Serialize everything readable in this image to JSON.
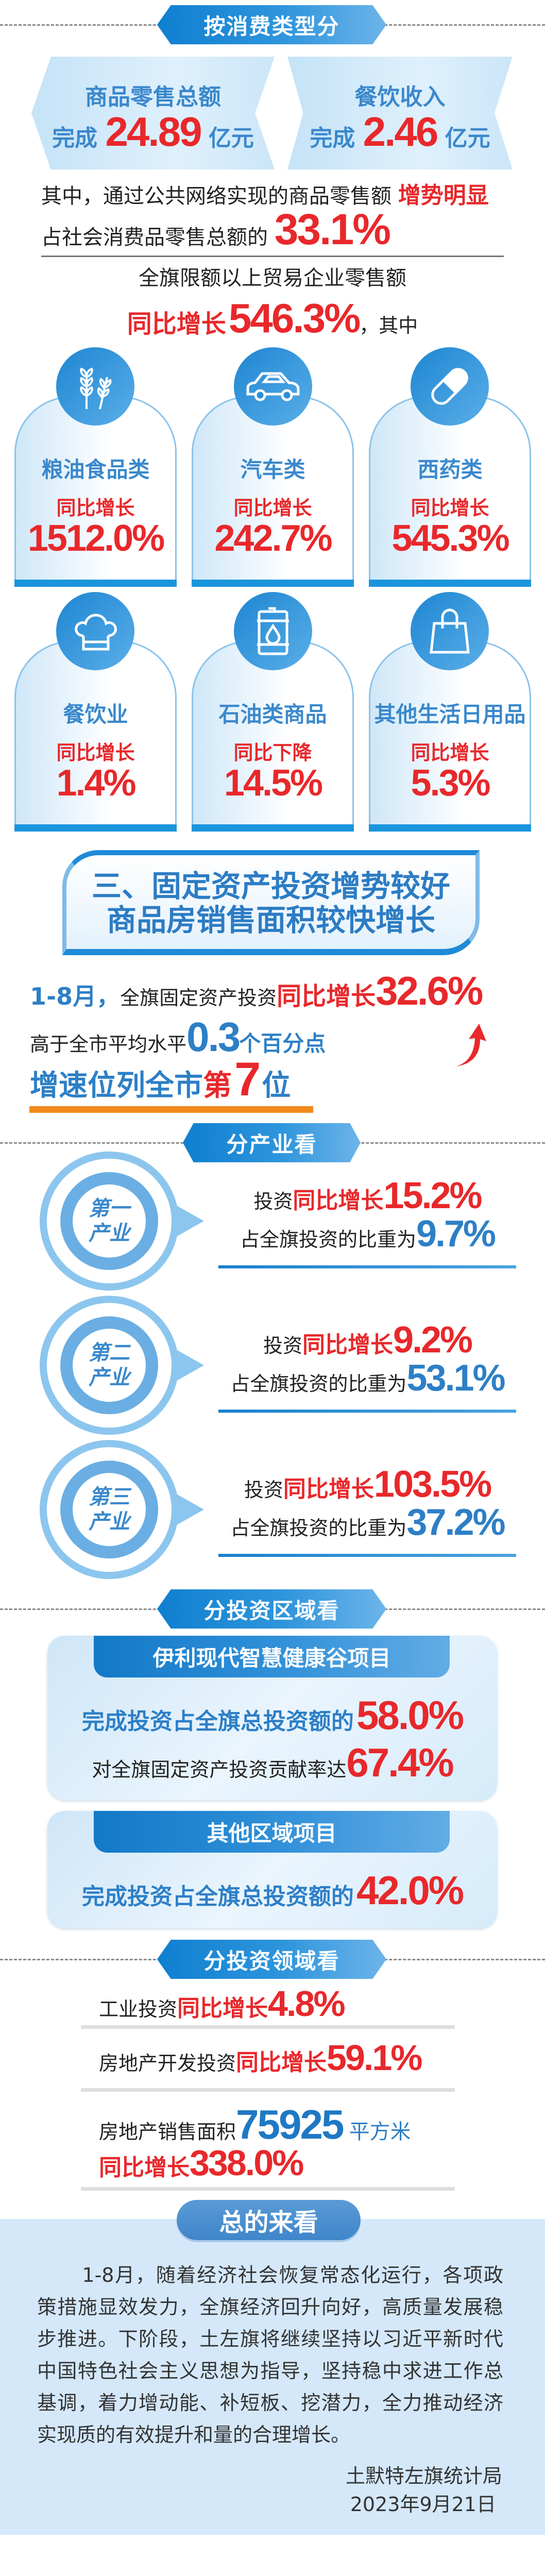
{
  "consumption": {
    "banner": "按消费类型分",
    "cards": [
      {
        "title": "商品零售总额",
        "prefix": "完成",
        "value": "24.89",
        "unit": "亿元"
      },
      {
        "title": "餐饮收入",
        "prefix": "完成",
        "value": "2.46",
        "unit": "亿元"
      }
    ],
    "online_line1": "其中，通过公共网络实现的商品零售额",
    "online_highlight": "增势明显",
    "online_line2": "占社会消费品零售总额的",
    "online_share": "33.1%",
    "trade_line1": "全旗限额以上贸易企业零售额",
    "trade_yoy_label": "同比增长",
    "trade_yoy_value": "546.3%",
    "trade_suffix": "，其中",
    "categories": [
      {
        "icon": "wheat-icon",
        "label": "粮油食品类",
        "trend": "同比增长",
        "value": "1512.0%"
      },
      {
        "icon": "car-icon",
        "label": "汽车类",
        "trend": "同比增长",
        "value": "242.7%"
      },
      {
        "icon": "pill-icon",
        "label": "西药类",
        "trend": "同比增长",
        "value": "545.3%"
      },
      {
        "icon": "chef-hat-icon",
        "label": "餐饮业",
        "trend": "同比增长",
        "value": "1.4%"
      },
      {
        "icon": "oil-barrel-icon",
        "label": "石油类商品",
        "trend": "同比下降",
        "value": "14.5%"
      },
      {
        "icon": "shopping-bag-icon",
        "label": "其他生活日用品",
        "trend": "同比增长",
        "value": "5.3%"
      }
    ]
  },
  "investment": {
    "section_title_1": "三、固定资产投资增势较好",
    "section_title_2": "商品房销售面积较快增长",
    "period": "1-8月，",
    "line1_text": "全旗固定资产投资",
    "line1_yoy": "同比增长",
    "line1_value": "32.6%",
    "line2_text": "高于全市平均水平",
    "line2_value": "0.3",
    "line2_unit": "个百分点",
    "line3_text": "增速位列全市",
    "line3_rank_pre": "第",
    "line3_rank": "7",
    "line3_rank_post": "位",
    "accent_colors": {
      "red": "#e8282b",
      "blue": "#2d7fc6",
      "orange": "#f08a1c"
    }
  },
  "industry": {
    "banner": "分产业看",
    "items": [
      {
        "name1": "第一",
        "name2": "产业",
        "pre": "投资",
        "yoy": "同比增长",
        "growth": "15.2%",
        "share_text": "占全旗投资的比重为",
        "share": "9.7%"
      },
      {
        "name1": "第二",
        "name2": "产业",
        "pre": "投资",
        "yoy": "同比增长",
        "growth": "9.2%",
        "share_text": "占全旗投资的比重为",
        "share": "53.1%"
      },
      {
        "name1": "第三",
        "name2": "产业",
        "pre": "投资",
        "yoy": "同比增长",
        "growth": "103.5%",
        "share_text": "占全旗投资的比重为",
        "share": "37.2%"
      }
    ]
  },
  "region": {
    "banner": "分投资区域看",
    "projects": [
      {
        "title": "伊利现代智慧健康谷项目",
        "line1": "完成投资占全旗总投资额的",
        "value1": "58.0%",
        "line2": "对全旗固定资产投资贡献率达",
        "value2": "67.4%"
      },
      {
        "title": "其他区域项目",
        "line1": "完成投资占全旗总投资额的",
        "value1": "42.0%"
      }
    ]
  },
  "field": {
    "banner": "分投资领域看",
    "industrial_text": "工业投资",
    "industrial_yoy": "同比增长",
    "industrial_value": "4.8%",
    "realestate_text": "房地产开发投资",
    "realestate_yoy": "同比增长",
    "realestate_value": "59.1%",
    "sales_text": "房地产销售面积",
    "sales_value": "75925",
    "sales_unit": "平方米",
    "sales_yoy": "同比增长",
    "sales_yoy_value": "338.0%"
  },
  "summary": {
    "title": "总的来看",
    "paragraph": "1-8月，随着经济社会恢复常态化运行，各项政策措施显效发力，全旗经济回升向好，高质量发展稳步推进。下阶段，土左旗将继续坚持以习近平新时代中国特色社会主义思想为指导，坚持稳中求进工作总基调，着力增动能、补短板、挖潜力，全力推动经济实现质的有效提升和量的合理增长。",
    "author": "土默特左旗统计局",
    "date": "2023年9月21日"
  }
}
